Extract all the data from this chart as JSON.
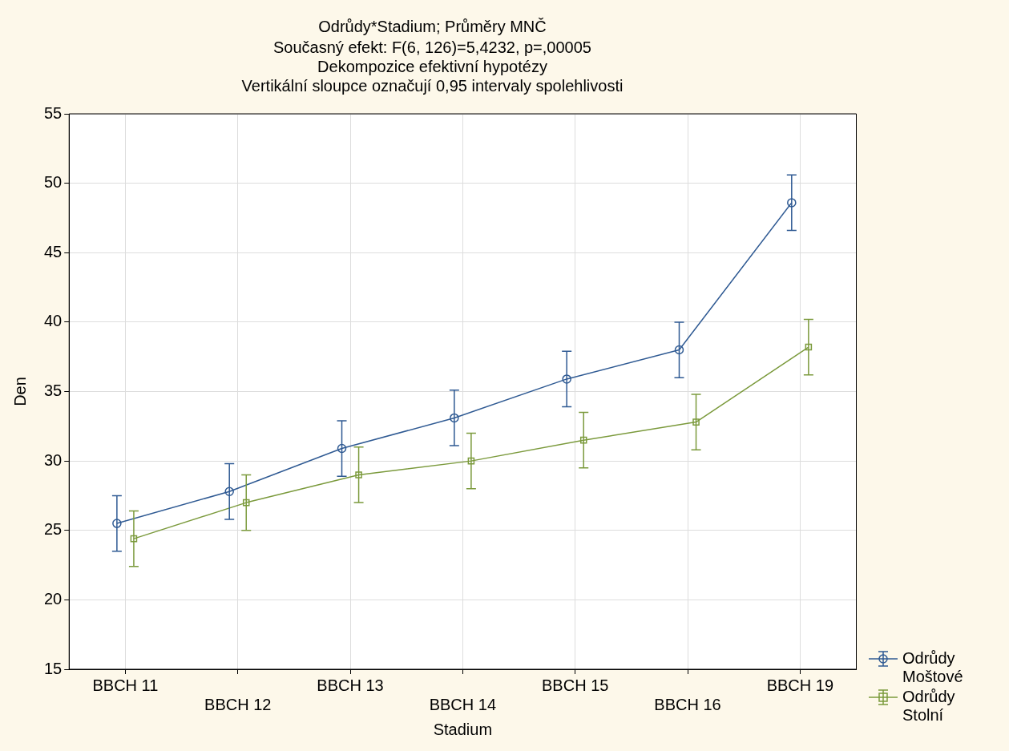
{
  "chart_data": {
    "type": "line",
    "title": "Odrůdy*Stadium; Průměry MNČ",
    "subtitle": "Současný efekt: F(6, 126)=5,4232, p=,00005\nDekompozice efektivní hypotézy\nVertikální sloupce označují 0,95 intervaly spolehlivosti",
    "xlabel": "Stadium",
    "ylabel": "Den",
    "categories": [
      "BBCH 11",
      "BBCH 12",
      "BBCH 13",
      "BBCH 14",
      "BBCH 15",
      "BBCH 16",
      "BBCH 19"
    ],
    "series": [
      {
        "name": "Odrůdy Moštové",
        "color": "#2f5a93",
        "marker": "circle",
        "values": [
          25.5,
          27.8,
          30.9,
          33.1,
          35.9,
          38.0,
          48.6
        ],
        "errors": [
          2,
          2,
          2,
          2,
          2,
          2,
          2
        ]
      },
      {
        "name": "Odrůdy Stolní",
        "color": "#7b9a3c",
        "marker": "square",
        "values": [
          24.4,
          27.0,
          29.0,
          30.0,
          31.5,
          32.8,
          38.2
        ],
        "errors": [
          2,
          2,
          2,
          2,
          2,
          2,
          2
        ]
      }
    ],
    "ylim": [
      15,
      55
    ],
    "yticks": [
      15,
      20,
      25,
      30,
      35,
      40,
      45,
      50,
      55
    ],
    "grid": true,
    "legend": "bottom right",
    "line_style": "solid"
  }
}
